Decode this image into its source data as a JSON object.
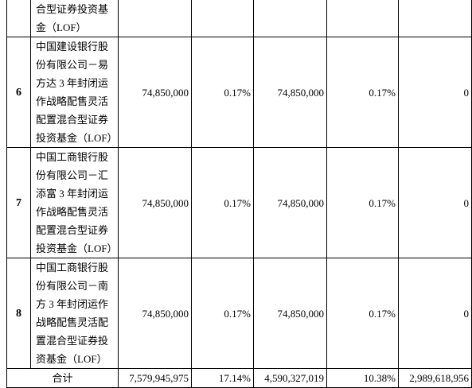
{
  "table": {
    "partial_row": {
      "name": "合型证券投资基金（LOF）"
    },
    "rows": [
      {
        "no": "6",
        "name": "中国建设银行股份有限公司－易方达 3 年封闭运作战略配售灵活配置混合型证券投资基金（LOF）",
        "values": [
          "74,850,000",
          "0.17%",
          "74,850,000",
          "0.17%",
          "0"
        ]
      },
      {
        "no": "7",
        "name": "中国工商银行股份有限公司－汇添富 3 年封闭运作战略配售灵活配置混合型证券投资基金（LOF）",
        "values": [
          "74,850,000",
          "0.17%",
          "74,850,000",
          "0.17%",
          "0"
        ]
      },
      {
        "no": "8",
        "name": "中国工商银行股份有限公司－南方 3 年封闭运作战略配售灵活配置混合型证券投资基金（LOF）",
        "values": [
          "74,850,000",
          "0.17%",
          "74,850,000",
          "0.17%",
          "0"
        ]
      }
    ],
    "total": {
      "label": "合计",
      "values": [
        "7,579,945,975",
        "17.14%",
        "4,590,327,019",
        "10.38%",
        "2,989,618,956"
      ]
    }
  }
}
